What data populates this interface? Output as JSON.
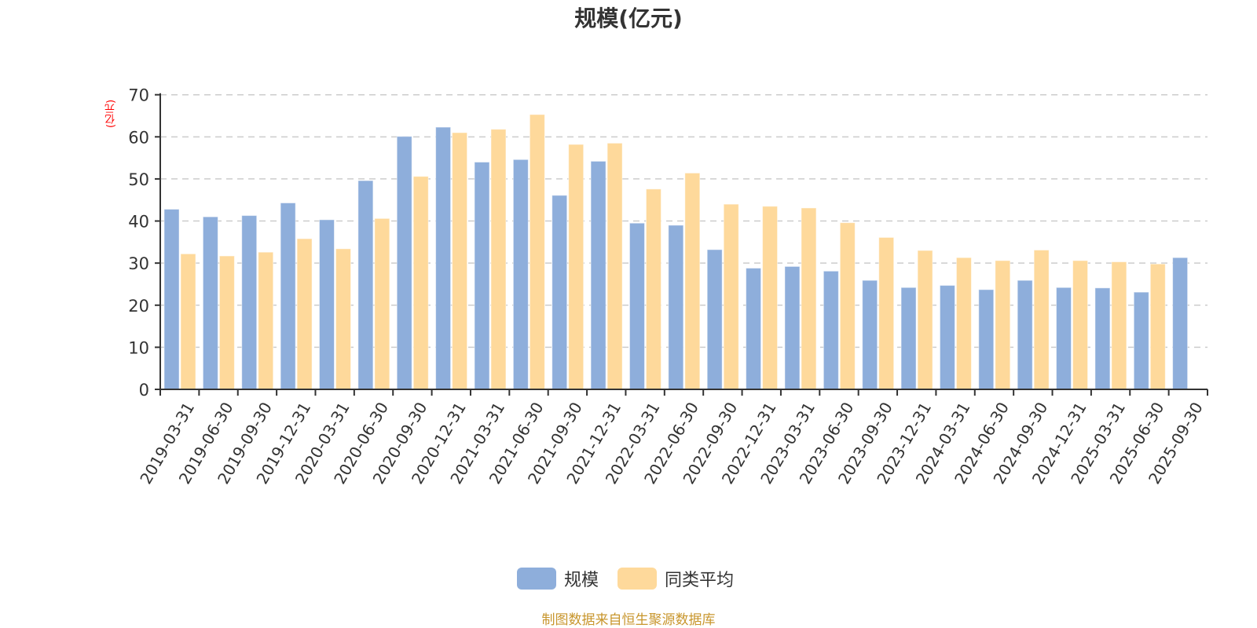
{
  "header": {
    "title": "规模(亿元)"
  },
  "axis": {
    "y_unit_label": "(亿元)"
  },
  "legend": {
    "items": [
      {
        "label": "规模",
        "color": "#8eaedb"
      },
      {
        "label": "同类平均",
        "color": "#fed99b"
      }
    ]
  },
  "footer": {
    "source": "制图数据来自恒生聚源数据库"
  },
  "colors": {
    "series1": "#8eaedb",
    "series2": "#fed99b",
    "axis": "#333333",
    "grid": "#cccccc",
    "ylabel": "#ff0000",
    "footer": "#c8962d"
  },
  "chart_data": {
    "type": "bar",
    "title": "规模(亿元)",
    "xlabel": "",
    "ylabel": "(亿元)",
    "ylim": [
      0,
      70
    ],
    "yticks": [
      0,
      10,
      20,
      30,
      40,
      50,
      60,
      70
    ],
    "grid": true,
    "legend_position": "bottom",
    "categories": [
      "2019-03-31",
      "2019-06-30",
      "2019-09-30",
      "2019-12-31",
      "2020-03-31",
      "2020-06-30",
      "2020-09-30",
      "2020-12-31",
      "2021-03-31",
      "2021-06-30",
      "2021-09-30",
      "2021-12-31",
      "2022-03-31",
      "2022-06-30",
      "2022-09-30",
      "2022-12-31",
      "2023-03-31",
      "2023-06-30",
      "2023-09-30",
      "2023-12-31",
      "2024-03-31",
      "2024-06-30",
      "2024-09-30",
      "2024-12-31",
      "2025-03-31",
      "2025-06-30",
      "2025-09-30"
    ],
    "series": [
      {
        "name": "规模",
        "color": "#8eaedb",
        "values": [
          42.8,
          41.0,
          41.3,
          44.3,
          40.3,
          49.6,
          60.1,
          62.3,
          54.0,
          54.6,
          46.1,
          54.2,
          39.5,
          39.0,
          33.2,
          28.8,
          29.2,
          28.1,
          25.9,
          24.2,
          24.7,
          23.7,
          25.9,
          24.2,
          24.1,
          23.1,
          31.3
        ]
      },
      {
        "name": "同类平均",
        "color": "#fed99b",
        "values": [
          32.2,
          31.7,
          32.6,
          35.8,
          33.4,
          40.6,
          50.6,
          61.0,
          61.8,
          65.3,
          58.2,
          58.5,
          47.6,
          51.4,
          44.0,
          43.5,
          43.1,
          39.6,
          36.1,
          33.0,
          31.3,
          30.6,
          33.1,
          30.6,
          30.3,
          29.8,
          null
        ]
      }
    ]
  }
}
